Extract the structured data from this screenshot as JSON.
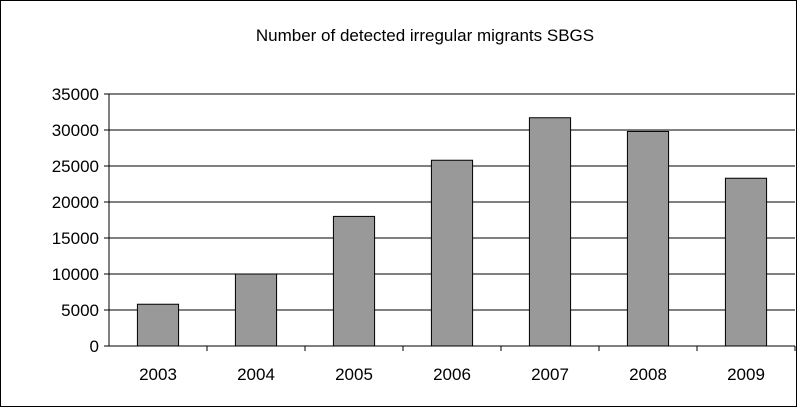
{
  "chart_data": {
    "type": "bar",
    "title": "Number of detected irregular migrants  SBGS",
    "xlabel": "",
    "ylabel": "",
    "categories": [
      "2003",
      "2004",
      "2005",
      "2006",
      "2007",
      "2008",
      "2009"
    ],
    "values": [
      5800,
      10000,
      18000,
      25800,
      31700,
      29800,
      23300
    ],
    "ylim": [
      0,
      35000
    ],
    "yticks": [
      "0",
      "5000",
      "10000",
      "15000",
      "20000",
      "25000",
      "30000",
      "35000"
    ],
    "grid": "horizontal",
    "legend": "none",
    "colors": {
      "bar": "#999999",
      "bar_stroke": "#000000",
      "grid": "#000000"
    }
  }
}
